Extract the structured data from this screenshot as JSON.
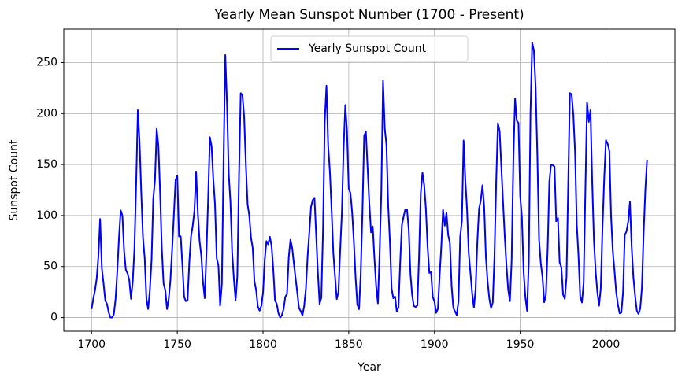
{
  "chart_data": {
    "type": "line",
    "title": "Yearly Mean Sunspot Number (1700 - Present)",
    "x_label": "Year",
    "y_label": "Sunspot Count",
    "x": [
      1700,
      1701,
      1702,
      1703,
      1704,
      1705,
      1706,
      1707,
      1708,
      1709,
      1710,
      1711,
      1712,
      1713,
      1714,
      1715,
      1716,
      1717,
      1718,
      1719,
      1720,
      1721,
      1722,
      1723,
      1724,
      1725,
      1726,
      1727,
      1728,
      1729,
      1730,
      1731,
      1732,
      1733,
      1734,
      1735,
      1736,
      1737,
      1738,
      1739,
      1740,
      1741,
      1742,
      1743,
      1744,
      1745,
      1746,
      1747,
      1748,
      1749,
      1750,
      1751,
      1752,
      1753,
      1754,
      1755,
      1756,
      1757,
      1758,
      1759,
      1760,
      1761,
      1762,
      1763,
      1764,
      1765,
      1766,
      1767,
      1768,
      1769,
      1770,
      1771,
      1772,
      1773,
      1774,
      1775,
      1776,
      1777,
      1778,
      1779,
      1780,
      1781,
      1782,
      1783,
      1784,
      1785,
      1786,
      1787,
      1788,
      1789,
      1790,
      1791,
      1792,
      1793,
      1794,
      1795,
      1796,
      1797,
      1798,
      1799,
      1800,
      1801,
      1802,
      1803,
      1804,
      1805,
      1806,
      1807,
      1808,
      1809,
      1810,
      1811,
      1812,
      1813,
      1814,
      1815,
      1816,
      1817,
      1818,
      1819,
      1820,
      1821,
      1822,
      1823,
      1824,
      1825,
      1826,
      1827,
      1828,
      1829,
      1830,
      1831,
      1832,
      1833,
      1834,
      1835,
      1836,
      1837,
      1838,
      1839,
      1840,
      1841,
      1842,
      1843,
      1844,
      1845,
      1846,
      1847,
      1848,
      1849,
      1850,
      1851,
      1852,
      1853,
      1854,
      1855,
      1856,
      1857,
      1858,
      1859,
      1860,
      1861,
      1862,
      1863,
      1864,
      1865,
      1866,
      1867,
      1868,
      1869,
      1870,
      1871,
      1872,
      1873,
      1874,
      1875,
      1876,
      1877,
      1878,
      1879,
      1880,
      1881,
      1882,
      1883,
      1884,
      1885,
      1886,
      1887,
      1888,
      1889,
      1890,
      1891,
      1892,
      1893,
      1894,
      1895,
      1896,
      1897,
      1898,
      1899,
      1900,
      1901,
      1902,
      1903,
      1904,
      1905,
      1906,
      1907,
      1908,
      1909,
      1910,
      1911,
      1912,
      1913,
      1914,
      1915,
      1916,
      1917,
      1918,
      1919,
      1920,
      1921,
      1922,
      1923,
      1924,
      1925,
      1926,
      1927,
      1928,
      1929,
      1930,
      1931,
      1932,
      1933,
      1934,
      1935,
      1936,
      1937,
      1938,
      1939,
      1940,
      1941,
      1942,
      1943,
      1944,
      1945,
      1946,
      1947,
      1948,
      1949,
      1950,
      1951,
      1952,
      1953,
      1954,
      1955,
      1956,
      1957,
      1958,
      1959,
      1960,
      1961,
      1962,
      1963,
      1964,
      1965,
      1966,
      1967,
      1968,
      1969,
      1970,
      1971,
      1972,
      1973,
      1974,
      1975,
      1976,
      1977,
      1978,
      1979,
      1980,
      1981,
      1982,
      1983,
      1984,
      1985,
      1986,
      1987,
      1988,
      1989,
      1990,
      1991,
      1992,
      1993,
      1994,
      1995,
      1996,
      1997,
      1998,
      1999,
      2000,
      2001,
      2002,
      2003,
      2004,
      2005,
      2006,
      2007,
      2008,
      2009,
      2010,
      2011,
      2012,
      2013,
      2014,
      2015,
      2016,
      2017,
      2018,
      2019,
      2020,
      2021,
      2022,
      2023,
      2024
    ],
    "series": [
      {
        "name": "Yearly Sunspot Count",
        "color": "#0000ff",
        "values": [
          8.3,
          18.3,
          26.7,
          38.3,
          60.0,
          96.7,
          48.3,
          33.3,
          16.7,
          13.3,
          5.0,
          0.0,
          0.0,
          3.3,
          18.3,
          45.0,
          78.3,
          105.0,
          100.0,
          65.0,
          46.7,
          43.3,
          36.7,
          18.3,
          35.0,
          66.7,
          130.0,
          203.3,
          171.7,
          121.7,
          78.3,
          58.3,
          18.3,
          8.3,
          26.7,
          56.7,
          116.7,
          135.0,
          185.0,
          168.3,
          121.7,
          66.7,
          33.3,
          26.7,
          8.3,
          18.3,
          36.7,
          66.7,
          100.0,
          134.8,
          139.0,
          79.5,
          79.7,
          51.2,
          20.3,
          16.0,
          17.0,
          54.0,
          79.3,
          90.0,
          104.8,
          143.2,
          102.0,
          75.2,
          60.7,
          34.8,
          19.0,
          63.0,
          116.3,
          176.8,
          168.0,
          136.0,
          110.8,
          58.0,
          51.0,
          11.7,
          33.0,
          154.2,
          257.3,
          209.8,
          141.3,
          113.5,
          64.2,
          38.0,
          17.0,
          40.2,
          138.2,
          220.0,
          218.2,
          196.8,
          149.8,
          111.0,
          100.0,
          78.2,
          68.3,
          35.5,
          26.7,
          10.7,
          6.8,
          11.3,
          24.2,
          56.7,
          75.0,
          71.8,
          79.2,
          70.3,
          46.8,
          16.8,
          13.5,
          4.2,
          0.0,
          2.3,
          8.3,
          20.3,
          23.2,
          59.0,
          76.3,
          68.3,
          52.9,
          38.5,
          24.2,
          9.2,
          6.3,
          2.2,
          11.4,
          28.2,
          59.9,
          83.0,
          108.5,
          115.2,
          117.4,
          80.8,
          44.3,
          13.4,
          19.5,
          85.8,
          192.7,
          227.3,
          168.7,
          143.0,
          105.5,
          63.3,
          40.3,
          18.1,
          25.1,
          65.8,
          102.7,
          166.3,
          208.3,
          182.5,
          126.3,
          122.0,
          102.7,
          74.1,
          39.0,
          12.7,
          8.2,
          43.4,
          104.4,
          178.3,
          182.2,
          146.6,
          112.1,
          83.5,
          89.2,
          57.8,
          30.7,
          13.9,
          62.8,
          123.6,
          232.0,
          185.3,
          169.2,
          110.1,
          74.5,
          28.3,
          18.9,
          20.7,
          5.7,
          10.0,
          53.7,
          90.5,
          99.0,
          106.1,
          105.8,
          86.3,
          42.4,
          21.8,
          11.2,
          10.4,
          11.8,
          59.5,
          121.7,
          142.0,
          130.0,
          106.6,
          69.4,
          43.8,
          44.4,
          20.2,
          15.7,
          4.6,
          8.5,
          40.8,
          70.1,
          105.5,
          90.1,
          102.8,
          80.9,
          73.2,
          30.9,
          9.5,
          6.0,
          2.4,
          16.1,
          79.0,
          95.0,
          173.6,
          134.6,
          105.7,
          62.7,
          43.5,
          23.7,
          9.7,
          27.9,
          74.0,
          106.5,
          114.7,
          129.7,
          108.2,
          59.4,
          35.1,
          18.6,
          9.2,
          14.6,
          60.2,
          132.8,
          190.6,
          182.6,
          148.0,
          113.0,
          79.2,
          50.8,
          27.1,
          16.1,
          55.3,
          154.3,
          214.7,
          193.0,
          190.7,
          118.9,
          98.3,
          45.0,
          20.1,
          6.6,
          54.2,
          200.7,
          269.3,
          261.7,
          225.1,
          159.0,
          76.4,
          53.4,
          39.9,
          15.0,
          22.0,
          66.8,
          132.9,
          150.0,
          149.4,
          148.0,
          94.4,
          97.6,
          54.1,
          49.2,
          22.5,
          18.4,
          39.3,
          131.0,
          220.1,
          218.9,
          198.9,
          162.4,
          91.0,
          60.5,
          20.6,
          14.8,
          33.9,
          123.0,
          211.1,
          191.8,
          203.3,
          133.0,
          76.1,
          44.9,
          25.1,
          11.6,
          28.9,
          88.3,
          136.3,
          173.9,
          170.4,
          163.6,
          99.3,
          65.3,
          45.8,
          24.7,
          12.6,
          4.2,
          4.8,
          24.9,
          80.8,
          84.5,
          94.0,
          113.3,
          69.8,
          39.8,
          21.7,
          7.0,
          3.6,
          8.8,
          29.6,
          83.2,
          125.5,
          154.7
        ]
      }
    ],
    "xlim": [
      1683.8,
      2040.2
    ],
    "xticks": [
      1700,
      1750,
      1800,
      1850,
      1900,
      1950,
      2000
    ],
    "ylim": [
      -13.47,
      282.77
    ],
    "yticks": [
      0,
      50,
      100,
      150,
      200,
      250
    ],
    "grid": true,
    "legend": "upper center"
  }
}
